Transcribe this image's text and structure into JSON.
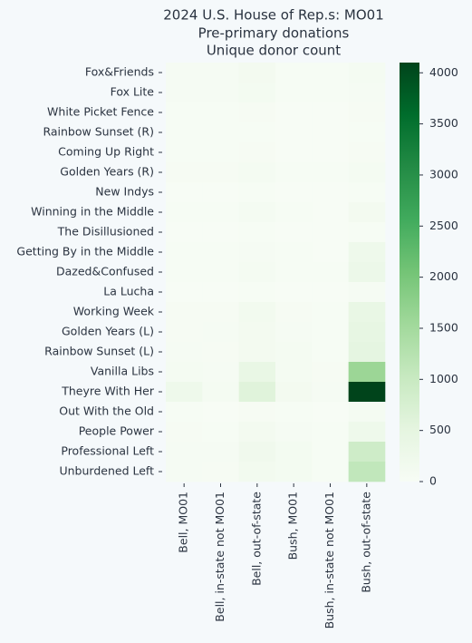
{
  "chart_data": {
    "type": "heatmap",
    "title": [
      "2024 U.S. House of Rep.s: MO01",
      "Pre-primary donations",
      "Unique donor count"
    ],
    "rows": [
      "Fox&Friends",
      "Fox Lite",
      "White Picket Fence",
      "Rainbow Sunset (R)",
      "Coming Up Right",
      "Golden Years (R)",
      "New Indys",
      "Winning in the Middle",
      "The Disillusioned",
      "Getting By in the Middle",
      "Dazed&Confused",
      "La Lucha",
      "Working Week",
      "Golden Years (L)",
      "Rainbow Sunset (L)",
      "Vanilla Libs",
      "Theyre With Her",
      "Out With the Old",
      "People Power",
      "Professional Left",
      "Unburdened Left"
    ],
    "columns": [
      "Bell, MO01",
      "Bell, in-state not MO01",
      "Bell, out-of-state",
      "Bush, MO01",
      "Bush, in-state not MO01",
      "Bush, out-of-state"
    ],
    "values": [
      [
        60,
        60,
        120,
        30,
        20,
        80
      ],
      [
        50,
        50,
        100,
        30,
        20,
        60
      ],
      [
        30,
        20,
        40,
        10,
        10,
        40
      ],
      [
        20,
        20,
        30,
        10,
        10,
        30
      ],
      [
        20,
        20,
        40,
        10,
        10,
        40
      ],
      [
        40,
        40,
        80,
        30,
        20,
        80
      ],
      [
        10,
        10,
        20,
        10,
        5,
        30
      ],
      [
        30,
        30,
        80,
        20,
        10,
        120
      ],
      [
        10,
        10,
        20,
        5,
        5,
        20
      ],
      [
        30,
        30,
        60,
        20,
        10,
        250
      ],
      [
        30,
        30,
        80,
        20,
        20,
        300
      ],
      [
        10,
        10,
        20,
        10,
        5,
        60
      ],
      [
        40,
        40,
        150,
        40,
        20,
        400
      ],
      [
        40,
        50,
        120,
        50,
        20,
        450
      ],
      [
        60,
        40,
        120,
        80,
        30,
        500
      ],
      [
        80,
        50,
        400,
        80,
        40,
        1600
      ],
      [
        250,
        80,
        600,
        120,
        50,
        4100
      ],
      [
        20,
        10,
        40,
        20,
        10,
        80
      ],
      [
        40,
        30,
        120,
        60,
        20,
        250
      ],
      [
        60,
        50,
        200,
        100,
        30,
        900
      ],
      [
        60,
        40,
        150,
        100,
        20,
        1100
      ]
    ],
    "colormap": [
      "#f7fcf5",
      "#e5f5e0",
      "#c7e9c0",
      "#a1d99b",
      "#74c476",
      "#41ab5d",
      "#238b45",
      "#006d2c",
      "#00441b"
    ],
    "clim": [
      0,
      4100
    ],
    "cticks": [
      0,
      500,
      1000,
      1500,
      2000,
      2500,
      3000,
      3500,
      4000
    ]
  }
}
